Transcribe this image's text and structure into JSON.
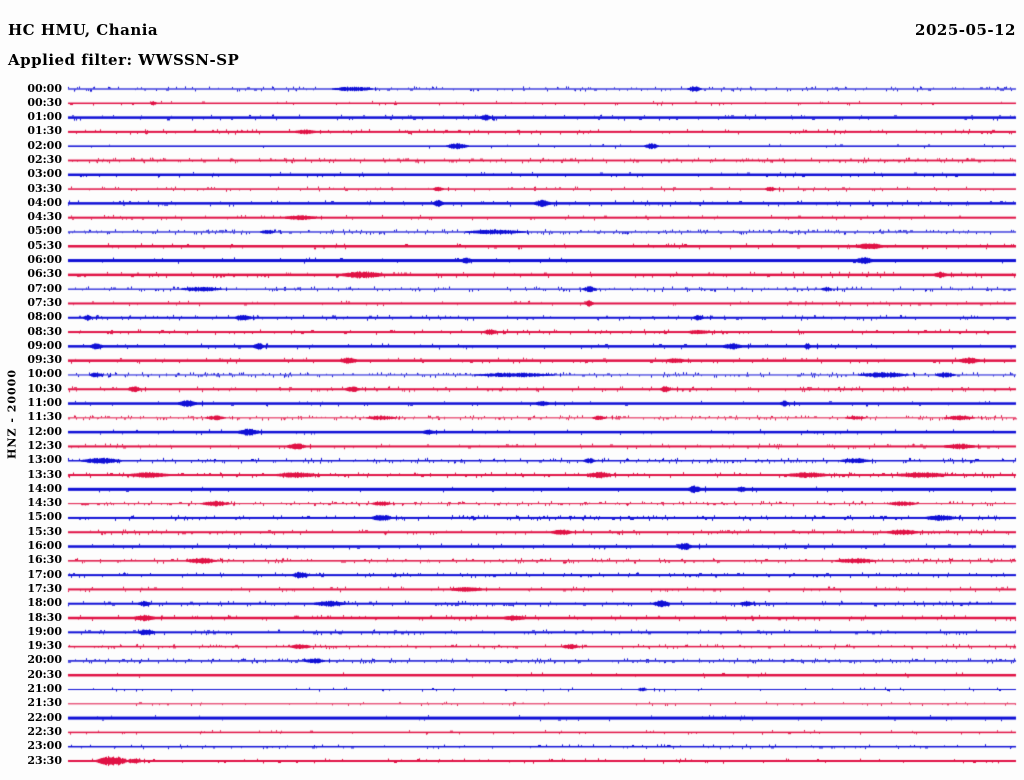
{
  "chart_data": {
    "type": "line",
    "subtype": "helicorder_seismogram",
    "title": "HC HMU, Chania",
    "date": "2025-05-12",
    "applied_filter_label": "Applied filter: WWSSN-SP",
    "filter": "WWSSN-SP",
    "y_axis_label": "HNZ - 20000",
    "row_interval_minutes": 30,
    "background": "#fdfdfd",
    "trace_colors": {
      "blue": "#0f0fd6",
      "red": "#e01144"
    },
    "layout": {
      "grid": false,
      "legend": "none",
      "x_axis": "time of day, one row per 30 minutes",
      "trace_area": "full width"
    },
    "rows": [
      {
        "label": "00:00",
        "color": "blue",
        "w": 1.2,
        "n": 0.55,
        "amp": 1.6,
        "events": [
          [
            0.3,
            2,
            40
          ],
          [
            0.66,
            2.5,
            14
          ]
        ]
      },
      {
        "label": "00:30",
        "color": "red",
        "w": 1.5,
        "n": 0.15,
        "amp": 1.2,
        "events": [
          [
            0.09,
            1.5,
            6
          ]
        ]
      },
      {
        "label": "01:00",
        "color": "blue",
        "w": 2.5,
        "n": 0.25,
        "amp": 1.4,
        "events": [
          [
            0.44,
            2,
            10
          ]
        ]
      },
      {
        "label": "01:30",
        "color": "red",
        "w": 2,
        "n": 0.3,
        "amp": 1.4,
        "events": [
          [
            0.25,
            1.5,
            20
          ]
        ]
      },
      {
        "label": "02:00",
        "color": "blue",
        "w": 1.5,
        "n": 0.12,
        "amp": 1.2,
        "events": [
          [
            0.41,
            2.5,
            22
          ],
          [
            0.615,
            2.5,
            14
          ]
        ]
      },
      {
        "label": "02:30",
        "color": "red",
        "w": 1.8,
        "n": 0.6,
        "amp": 1.5,
        "events": []
      },
      {
        "label": "03:00",
        "color": "blue",
        "w": 2.5,
        "n": 0.2,
        "amp": 1.3,
        "events": []
      },
      {
        "label": "03:30",
        "color": "red",
        "w": 1.5,
        "n": 0.3,
        "amp": 1.4,
        "events": [
          [
            0.39,
            2,
            10
          ],
          [
            0.74,
            2,
            10
          ]
        ]
      },
      {
        "label": "04:00",
        "color": "blue",
        "w": 2.5,
        "n": 0.35,
        "amp": 1.5,
        "events": [
          [
            0.39,
            2.5,
            10
          ],
          [
            0.5,
            2.5,
            16
          ]
        ]
      },
      {
        "label": "04:30",
        "color": "red",
        "w": 2,
        "n": 0.15,
        "amp": 1.3,
        "events": [
          [
            0.245,
            1.5,
            30
          ]
        ]
      },
      {
        "label": "05:00",
        "color": "blue",
        "w": 1.2,
        "n": 0.7,
        "amp": 1.7,
        "events": [
          [
            0.21,
            2,
            14
          ],
          [
            0.45,
            2,
            60
          ]
        ]
      },
      {
        "label": "05:30",
        "color": "red",
        "w": 2.5,
        "n": 0.2,
        "amp": 1.4,
        "events": [
          [
            0.845,
            2,
            26
          ]
        ]
      },
      {
        "label": "06:00",
        "color": "blue",
        "w": 3,
        "n": 0.1,
        "amp": 1.2,
        "events": [
          [
            0.42,
            1.5,
            10
          ],
          [
            0.84,
            2,
            16
          ]
        ]
      },
      {
        "label": "06:30",
        "color": "red",
        "w": 2.5,
        "n": 0.3,
        "amp": 1.5,
        "events": [
          [
            0.31,
            2.5,
            40
          ],
          [
            0.92,
            2,
            12
          ]
        ]
      },
      {
        "label": "07:00",
        "color": "blue",
        "w": 1.2,
        "n": 0.6,
        "amp": 1.7,
        "events": [
          [
            0.14,
            2,
            40
          ],
          [
            0.55,
            2.5,
            14
          ],
          [
            0.8,
            2,
            10
          ]
        ]
      },
      {
        "label": "07:30",
        "color": "red",
        "w": 2,
        "n": 0.2,
        "amp": 1.3,
        "events": [
          [
            0.55,
            2.5,
            8
          ]
        ]
      },
      {
        "label": "08:00",
        "color": "blue",
        "w": 2,
        "n": 0.4,
        "amp": 1.5,
        "events": [
          [
            0.02,
            2,
            8
          ],
          [
            0.185,
            2.5,
            16
          ],
          [
            0.665,
            2,
            10
          ]
        ]
      },
      {
        "label": "08:30",
        "color": "red",
        "w": 2,
        "n": 0.3,
        "amp": 1.4,
        "events": [
          [
            0.445,
            2,
            14
          ],
          [
            0.665,
            1.5,
            20
          ]
        ]
      },
      {
        "label": "09:00",
        "color": "blue",
        "w": 2.5,
        "n": 0.2,
        "amp": 1.4,
        "events": [
          [
            0.03,
            2,
            12
          ],
          [
            0.2,
            2.5,
            10
          ],
          [
            0.7,
            2,
            18
          ],
          [
            0.78,
            2.5,
            6
          ]
        ]
      },
      {
        "label": "09:30",
        "color": "red",
        "w": 2.5,
        "n": 0.25,
        "amp": 1.4,
        "events": [
          [
            0.295,
            2,
            16
          ],
          [
            0.64,
            1.5,
            16
          ],
          [
            0.95,
            2,
            20
          ]
        ]
      },
      {
        "label": "10:00",
        "color": "blue",
        "w": 1,
        "n": 0.75,
        "amp": 1.8,
        "events": [
          [
            0.03,
            2.5,
            14
          ],
          [
            0.47,
            2,
            80
          ],
          [
            0.86,
            2.5,
            50
          ],
          [
            0.925,
            2.5,
            20
          ]
        ]
      },
      {
        "label": "10:30",
        "color": "red",
        "w": 2,
        "n": 0.4,
        "amp": 1.5,
        "events": [
          [
            0.07,
            2,
            12
          ],
          [
            0.3,
            2,
            14
          ],
          [
            0.63,
            2.5,
            10
          ]
        ]
      },
      {
        "label": "11:00",
        "color": "blue",
        "w": 2.5,
        "n": 0.15,
        "amp": 1.3,
        "events": [
          [
            0.125,
            2.5,
            18
          ],
          [
            0.5,
            1.5,
            12
          ],
          [
            0.755,
            2,
            8
          ]
        ]
      },
      {
        "label": "11:30",
        "color": "red",
        "w": 1,
        "n": 0.7,
        "amp": 1.7,
        "events": [
          [
            0.155,
            2,
            20
          ],
          [
            0.33,
            2,
            30
          ],
          [
            0.56,
            2,
            14
          ],
          [
            0.83,
            1.5,
            20
          ],
          [
            0.94,
            2,
            30
          ]
        ]
      },
      {
        "label": "12:00",
        "color": "blue",
        "w": 2.5,
        "n": 0.15,
        "amp": 1.3,
        "events": [
          [
            0.19,
            2.5,
            20
          ],
          [
            0.38,
            1.5,
            10
          ]
        ]
      },
      {
        "label": "12:30",
        "color": "red",
        "w": 2,
        "n": 0.3,
        "amp": 1.4,
        "events": [
          [
            0.24,
            2.5,
            18
          ],
          [
            0.94,
            2,
            30
          ]
        ]
      },
      {
        "label": "13:00",
        "color": "blue",
        "w": 1.5,
        "n": 0.6,
        "amp": 1.7,
        "events": [
          [
            0.035,
            2.5,
            40
          ],
          [
            0.55,
            2,
            12
          ],
          [
            0.83,
            2,
            30
          ]
        ]
      },
      {
        "label": "13:30",
        "color": "red",
        "w": 2,
        "n": 0.45,
        "amp": 1.5,
        "events": [
          [
            0.085,
            2,
            40
          ],
          [
            0.24,
            2,
            40
          ],
          [
            0.56,
            2.5,
            24
          ],
          [
            0.78,
            2,
            40
          ],
          [
            0.9,
            2,
            50
          ]
        ]
      },
      {
        "label": "14:00",
        "color": "blue",
        "w": 3,
        "n": 0.08,
        "amp": 1.2,
        "events": [
          [
            0.66,
            2.5,
            12
          ],
          [
            0.71,
            1.5,
            8
          ]
        ]
      },
      {
        "label": "14:30",
        "color": "red",
        "w": 1,
        "n": 0.6,
        "amp": 1.6,
        "events": [
          [
            0.155,
            2.5,
            30
          ],
          [
            0.33,
            2,
            20
          ],
          [
            0.88,
            2,
            30
          ]
        ]
      },
      {
        "label": "15:00",
        "color": "blue",
        "w": 2,
        "n": 0.5,
        "amp": 1.5,
        "events": [
          [
            0.33,
            2.5,
            20
          ],
          [
            0.92,
            2,
            30
          ]
        ]
      },
      {
        "label": "15:30",
        "color": "red",
        "w": 2,
        "n": 0.4,
        "amp": 1.4,
        "events": [
          [
            0.52,
            2,
            20
          ],
          [
            0.88,
            2,
            30
          ]
        ]
      },
      {
        "label": "16:00",
        "color": "blue",
        "w": 2.5,
        "n": 0.2,
        "amp": 1.3,
        "events": [
          [
            0.65,
            2.5,
            14
          ]
        ]
      },
      {
        "label": "16:30",
        "color": "red",
        "w": 1.5,
        "n": 0.55,
        "amp": 1.6,
        "events": [
          [
            0.14,
            2.5,
            30
          ],
          [
            0.83,
            2,
            40
          ]
        ]
      },
      {
        "label": "17:00",
        "color": "blue",
        "w": 2,
        "n": 0.35,
        "amp": 1.4,
        "events": [
          [
            0.245,
            2.5,
            16
          ]
        ]
      },
      {
        "label": "17:30",
        "color": "red",
        "w": 2,
        "n": 0.3,
        "amp": 1.4,
        "events": [
          [
            0.42,
            1.5,
            30
          ]
        ]
      },
      {
        "label": "18:00",
        "color": "blue",
        "w": 2,
        "n": 0.4,
        "amp": 1.5,
        "events": [
          [
            0.08,
            2,
            12
          ],
          [
            0.275,
            2,
            30
          ],
          [
            0.625,
            2.5,
            16
          ],
          [
            0.715,
            2,
            12
          ]
        ]
      },
      {
        "label": "18:30",
        "color": "red",
        "w": 2.5,
        "n": 0.3,
        "amp": 1.4,
        "events": [
          [
            0.08,
            2,
            20
          ],
          [
            0.47,
            1.5,
            20
          ]
        ]
      },
      {
        "label": "19:00",
        "color": "blue",
        "w": 2,
        "n": 0.35,
        "amp": 1.4,
        "events": [
          [
            0.082,
            2.5,
            16
          ]
        ]
      },
      {
        "label": "19:30",
        "color": "red",
        "w": 1.5,
        "n": 0.4,
        "amp": 1.4,
        "events": [
          [
            0.245,
            2,
            20
          ],
          [
            0.53,
            2,
            16
          ]
        ]
      },
      {
        "label": "20:00",
        "color": "blue",
        "w": 1.5,
        "n": 0.6,
        "amp": 1.5,
        "events": [
          [
            0.26,
            2,
            20
          ]
        ]
      },
      {
        "label": "20:30",
        "color": "red",
        "w": 2.5,
        "n": 0.08,
        "amp": 1.2,
        "events": []
      },
      {
        "label": "21:00",
        "color": "blue",
        "w": 1,
        "n": 0.15,
        "amp": 1.2,
        "events": [
          [
            0.605,
            1.5,
            10
          ]
        ]
      },
      {
        "label": "21:30",
        "color": "red",
        "w": 1,
        "n": 0.2,
        "amp": 1.2,
        "events": []
      },
      {
        "label": "22:00",
        "color": "blue",
        "w": 3,
        "n": 0.08,
        "amp": 1.2,
        "events": []
      },
      {
        "label": "22:30",
        "color": "red",
        "w": 1.5,
        "n": 0.2,
        "amp": 1.2,
        "events": []
      },
      {
        "label": "23:00",
        "color": "blue",
        "w": 1.5,
        "n": 0.3,
        "amp": 1.3,
        "events": []
      },
      {
        "label": "23:30",
        "color": "red",
        "w": 2,
        "n": 0.2,
        "amp": 1.3,
        "events": [
          [
            0.045,
            4.5,
            32
          ],
          [
            0.07,
            2,
            14
          ]
        ]
      }
    ]
  }
}
